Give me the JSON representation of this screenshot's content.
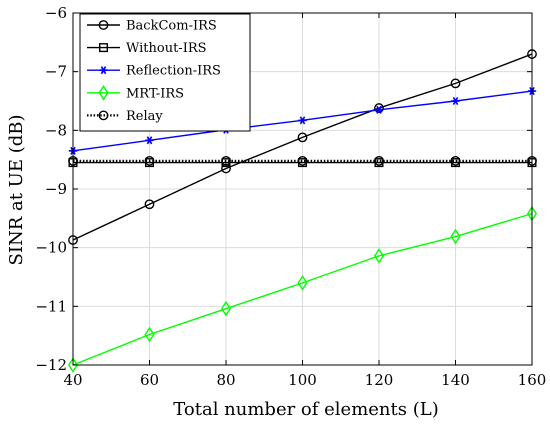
{
  "chart_data": {
    "type": "line",
    "title": "",
    "xlabel": "Total number of elements (L)",
    "ylabel": "SINR at UE (dB)",
    "xlim": [
      40,
      160
    ],
    "ylim": [
      -12,
      -6
    ],
    "x_ticks": [
      40,
      60,
      80,
      100,
      120,
      140,
      160
    ],
    "y_ticks": [
      -12,
      -11,
      -10,
      -9,
      -8,
      -7,
      -6
    ],
    "x_tick_labels": [
      "40",
      "60",
      "80",
      "100",
      "120",
      "140",
      "160"
    ],
    "y_tick_labels": [
      "−12",
      "−11",
      "−10",
      "−9",
      "−8",
      "−7",
      "−6"
    ],
    "grid": true,
    "legend_position": "top-left",
    "x": [
      40,
      60,
      80,
      100,
      120,
      140,
      160
    ],
    "series": [
      {
        "name": "BackCom-IRS",
        "values": [
          -9.87,
          -9.26,
          -8.65,
          -8.12,
          -7.62,
          -7.2,
          -6.7
        ],
        "color": "#000000",
        "marker": "circle",
        "dash": "solid"
      },
      {
        "name": "Without-IRS",
        "values": [
          -8.55,
          -8.55,
          -8.55,
          -8.55,
          -8.55,
          -8.55,
          -8.55
        ],
        "color": "#000000",
        "marker": "square",
        "dash": "solid"
      },
      {
        "name": "Reflection-IRS",
        "values": [
          -8.35,
          -8.17,
          -7.99,
          -7.83,
          -7.65,
          -7.5,
          -7.33
        ],
        "color": "#0000ff",
        "marker": "asterisk",
        "dash": "solid"
      },
      {
        "name": "MRT-IRS",
        "values": [
          -12.0,
          -11.48,
          -11.04,
          -10.6,
          -10.14,
          -9.81,
          -9.42
        ],
        "color": "#00ff00",
        "marker": "diamond",
        "dash": "solid"
      },
      {
        "name": "Relay",
        "values": [
          -8.52,
          -8.52,
          -8.52,
          -8.52,
          -8.52,
          -8.52,
          -8.52
        ],
        "color": "#000000",
        "marker": "circle",
        "dash": "dotted"
      }
    ]
  }
}
